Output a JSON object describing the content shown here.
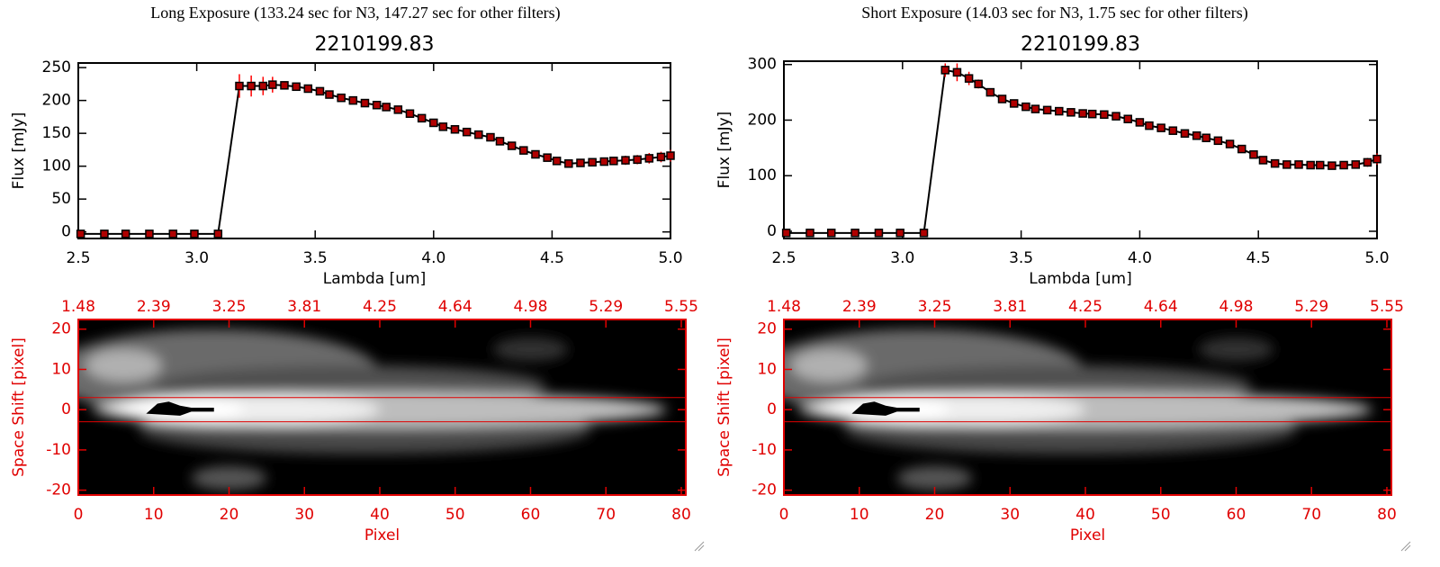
{
  "chart_data": [
    {
      "type": "line",
      "title": "Long Exposure (133.24 sec for N3, 147.27 sec for other filters)",
      "subtitle": "2210199.83",
      "x_label": "Lambda [um]",
      "y_label": "Flux [mJy]",
      "axis_color": "#000000",
      "xlim": [
        2.5,
        5.0
      ],
      "ylim": [
        -10,
        257
      ],
      "xticks": [
        2.5,
        {
          "value": 3,
          "label": "3.0"
        },
        3.5,
        {
          "value": 4,
          "label": "4.0"
        },
        4.5,
        {
          "value": 5,
          "label": "5.0"
        }
      ],
      "yticks": [
        0,
        50,
        100,
        150,
        200,
        250
      ],
      "x": [
        2.51,
        2.61,
        2.7,
        2.8,
        2.9,
        2.99,
        3.09,
        3.18,
        3.23,
        3.28,
        3.32,
        3.37,
        3.42,
        3.47,
        3.52,
        3.56,
        3.61,
        3.66,
        3.71,
        3.76,
        3.8,
        3.85,
        3.9,
        3.95,
        4.0,
        4.04,
        4.09,
        4.14,
        4.19,
        4.24,
        4.28,
        4.33,
        4.38,
        4.43,
        4.48,
        4.52,
        4.57,
        4.62,
        4.67,
        4.72,
        4.76,
        4.81,
        4.86,
        4.91,
        4.96,
        5.0
      ],
      "series": [
        {
          "color": "#000000",
          "marker_color": "#b00000",
          "error_color": "#ff0000",
          "values": [
            -3,
            -3,
            -3,
            -3,
            -3,
            -3,
            -3,
            222,
            222,
            222,
            224,
            223,
            221,
            218,
            214,
            209,
            204,
            200,
            196,
            193,
            190,
            186,
            180,
            173,
            166,
            160,
            156,
            152,
            148,
            144,
            138,
            131,
            124,
            118,
            113,
            108,
            104,
            105,
            106,
            107,
            108,
            109,
            110,
            112,
            114,
            116
          ],
          "errors": [
            2,
            2,
            2,
            2,
            2,
            2,
            2,
            18,
            16,
            14,
            12,
            6,
            4,
            4,
            4,
            4,
            4,
            4,
            4,
            4,
            4,
            4,
            4,
            4,
            4,
            4,
            4,
            4,
            4,
            4,
            4,
            4,
            4,
            4,
            4,
            4,
            4,
            5,
            5,
            6,
            6,
            7,
            7,
            8,
            8,
            9
          ]
        }
      ]
    },
    {
      "type": "line",
      "title": "Short Exposure (14.03 sec for N3, 1.75 sec for other filters)",
      "subtitle": "2210199.83",
      "x_label": "Lambda [um]",
      "y_label": "Flux [mJy]",
      "axis_color": "#000000",
      "xlim": [
        2.5,
        5.0
      ],
      "ylim": [
        -13,
        306
      ],
      "xticks": [
        2.5,
        {
          "value": 3,
          "label": "3.0"
        },
        3.5,
        {
          "value": 4,
          "label": "4.0"
        },
        4.5,
        {
          "value": 5,
          "label": "5.0"
        }
      ],
      "yticks": [
        0,
        100,
        200,
        300
      ],
      "x": [
        2.51,
        2.61,
        2.7,
        2.8,
        2.9,
        2.99,
        3.09,
        3.18,
        3.23,
        3.28,
        3.32,
        3.37,
        3.42,
        3.47,
        3.52,
        3.56,
        3.61,
        3.66,
        3.71,
        3.76,
        3.8,
        3.85,
        3.9,
        3.95,
        4.0,
        4.04,
        4.09,
        4.14,
        4.19,
        4.24,
        4.28,
        4.33,
        4.38,
        4.43,
        4.48,
        4.52,
        4.57,
        4.62,
        4.67,
        4.72,
        4.76,
        4.81,
        4.86,
        4.91,
        4.96,
        5.0
      ],
      "series": [
        {
          "color": "#000000",
          "marker_color": "#b00000",
          "error_color": "#ff0000",
          "values": [
            -3,
            -3,
            -3,
            -3,
            -3,
            -3,
            -3,
            290,
            286,
            275,
            265,
            250,
            238,
            230,
            224,
            220,
            218,
            216,
            214,
            212,
            211,
            210,
            207,
            202,
            196,
            190,
            186,
            181,
            176,
            172,
            168,
            163,
            157,
            148,
            138,
            128,
            122,
            120,
            120,
            119,
            119,
            118,
            119,
            120,
            124,
            130
          ],
          "errors": [
            2,
            2,
            2,
            2,
            2,
            2,
            2,
            12,
            16,
            12,
            8,
            5,
            4,
            4,
            4,
            4,
            4,
            4,
            4,
            4,
            4,
            4,
            4,
            4,
            4,
            4,
            4,
            4,
            4,
            4,
            4,
            4,
            4,
            4,
            4,
            4,
            4,
            4,
            5,
            5,
            5,
            6,
            6,
            7,
            8,
            10
          ]
        }
      ]
    },
    {
      "type": "image",
      "x_label": "Pixel",
      "y_label": "Space Shift [pixel]",
      "axis_color": "#e00000",
      "xlim": [
        0,
        80.6
      ],
      "ylim": [
        -21.2,
        22.4
      ],
      "xticks": [
        0,
        10,
        20,
        30,
        40,
        50,
        60,
        70,
        80
      ],
      "x2ticks": [
        {
          "value": 0,
          "label": "1.48"
        },
        {
          "value": 10,
          "label": "2.39"
        },
        {
          "value": 20,
          "label": "3.25"
        },
        {
          "value": 30,
          "label": "3.81"
        },
        {
          "value": 40,
          "label": "4.25"
        },
        {
          "value": 50,
          "label": "4.64"
        },
        {
          "value": 60,
          "label": "4.98"
        },
        {
          "value": 70,
          "label": "5.29"
        },
        {
          "value": 80,
          "label": "5.55"
        }
      ],
      "yticks": [
        -20,
        -10,
        0,
        10,
        20
      ],
      "hlines": [
        3,
        -3
      ],
      "hline_color": "#e00000"
    },
    {
      "type": "image",
      "x_label": "Pixel",
      "y_label": "Space Shift [pixel]",
      "axis_color": "#e00000",
      "xlim": [
        0,
        80.6
      ],
      "ylim": [
        -21.2,
        22.4
      ],
      "xticks": [
        0,
        10,
        20,
        30,
        40,
        50,
        60,
        70,
        80
      ],
      "x2ticks": [
        {
          "value": 0,
          "label": "1.48"
        },
        {
          "value": 10,
          "label": "2.39"
        },
        {
          "value": 20,
          "label": "3.25"
        },
        {
          "value": 30,
          "label": "3.81"
        },
        {
          "value": 40,
          "label": "4.25"
        },
        {
          "value": 50,
          "label": "4.64"
        },
        {
          "value": 60,
          "label": "4.98"
        },
        {
          "value": 70,
          "label": "5.29"
        },
        {
          "value": 80,
          "label": "5.55"
        }
      ],
      "yticks": [
        -20,
        -10,
        0,
        10,
        20
      ],
      "hlines": [
        3,
        -3
      ],
      "hline_color": "#e00000"
    }
  ]
}
